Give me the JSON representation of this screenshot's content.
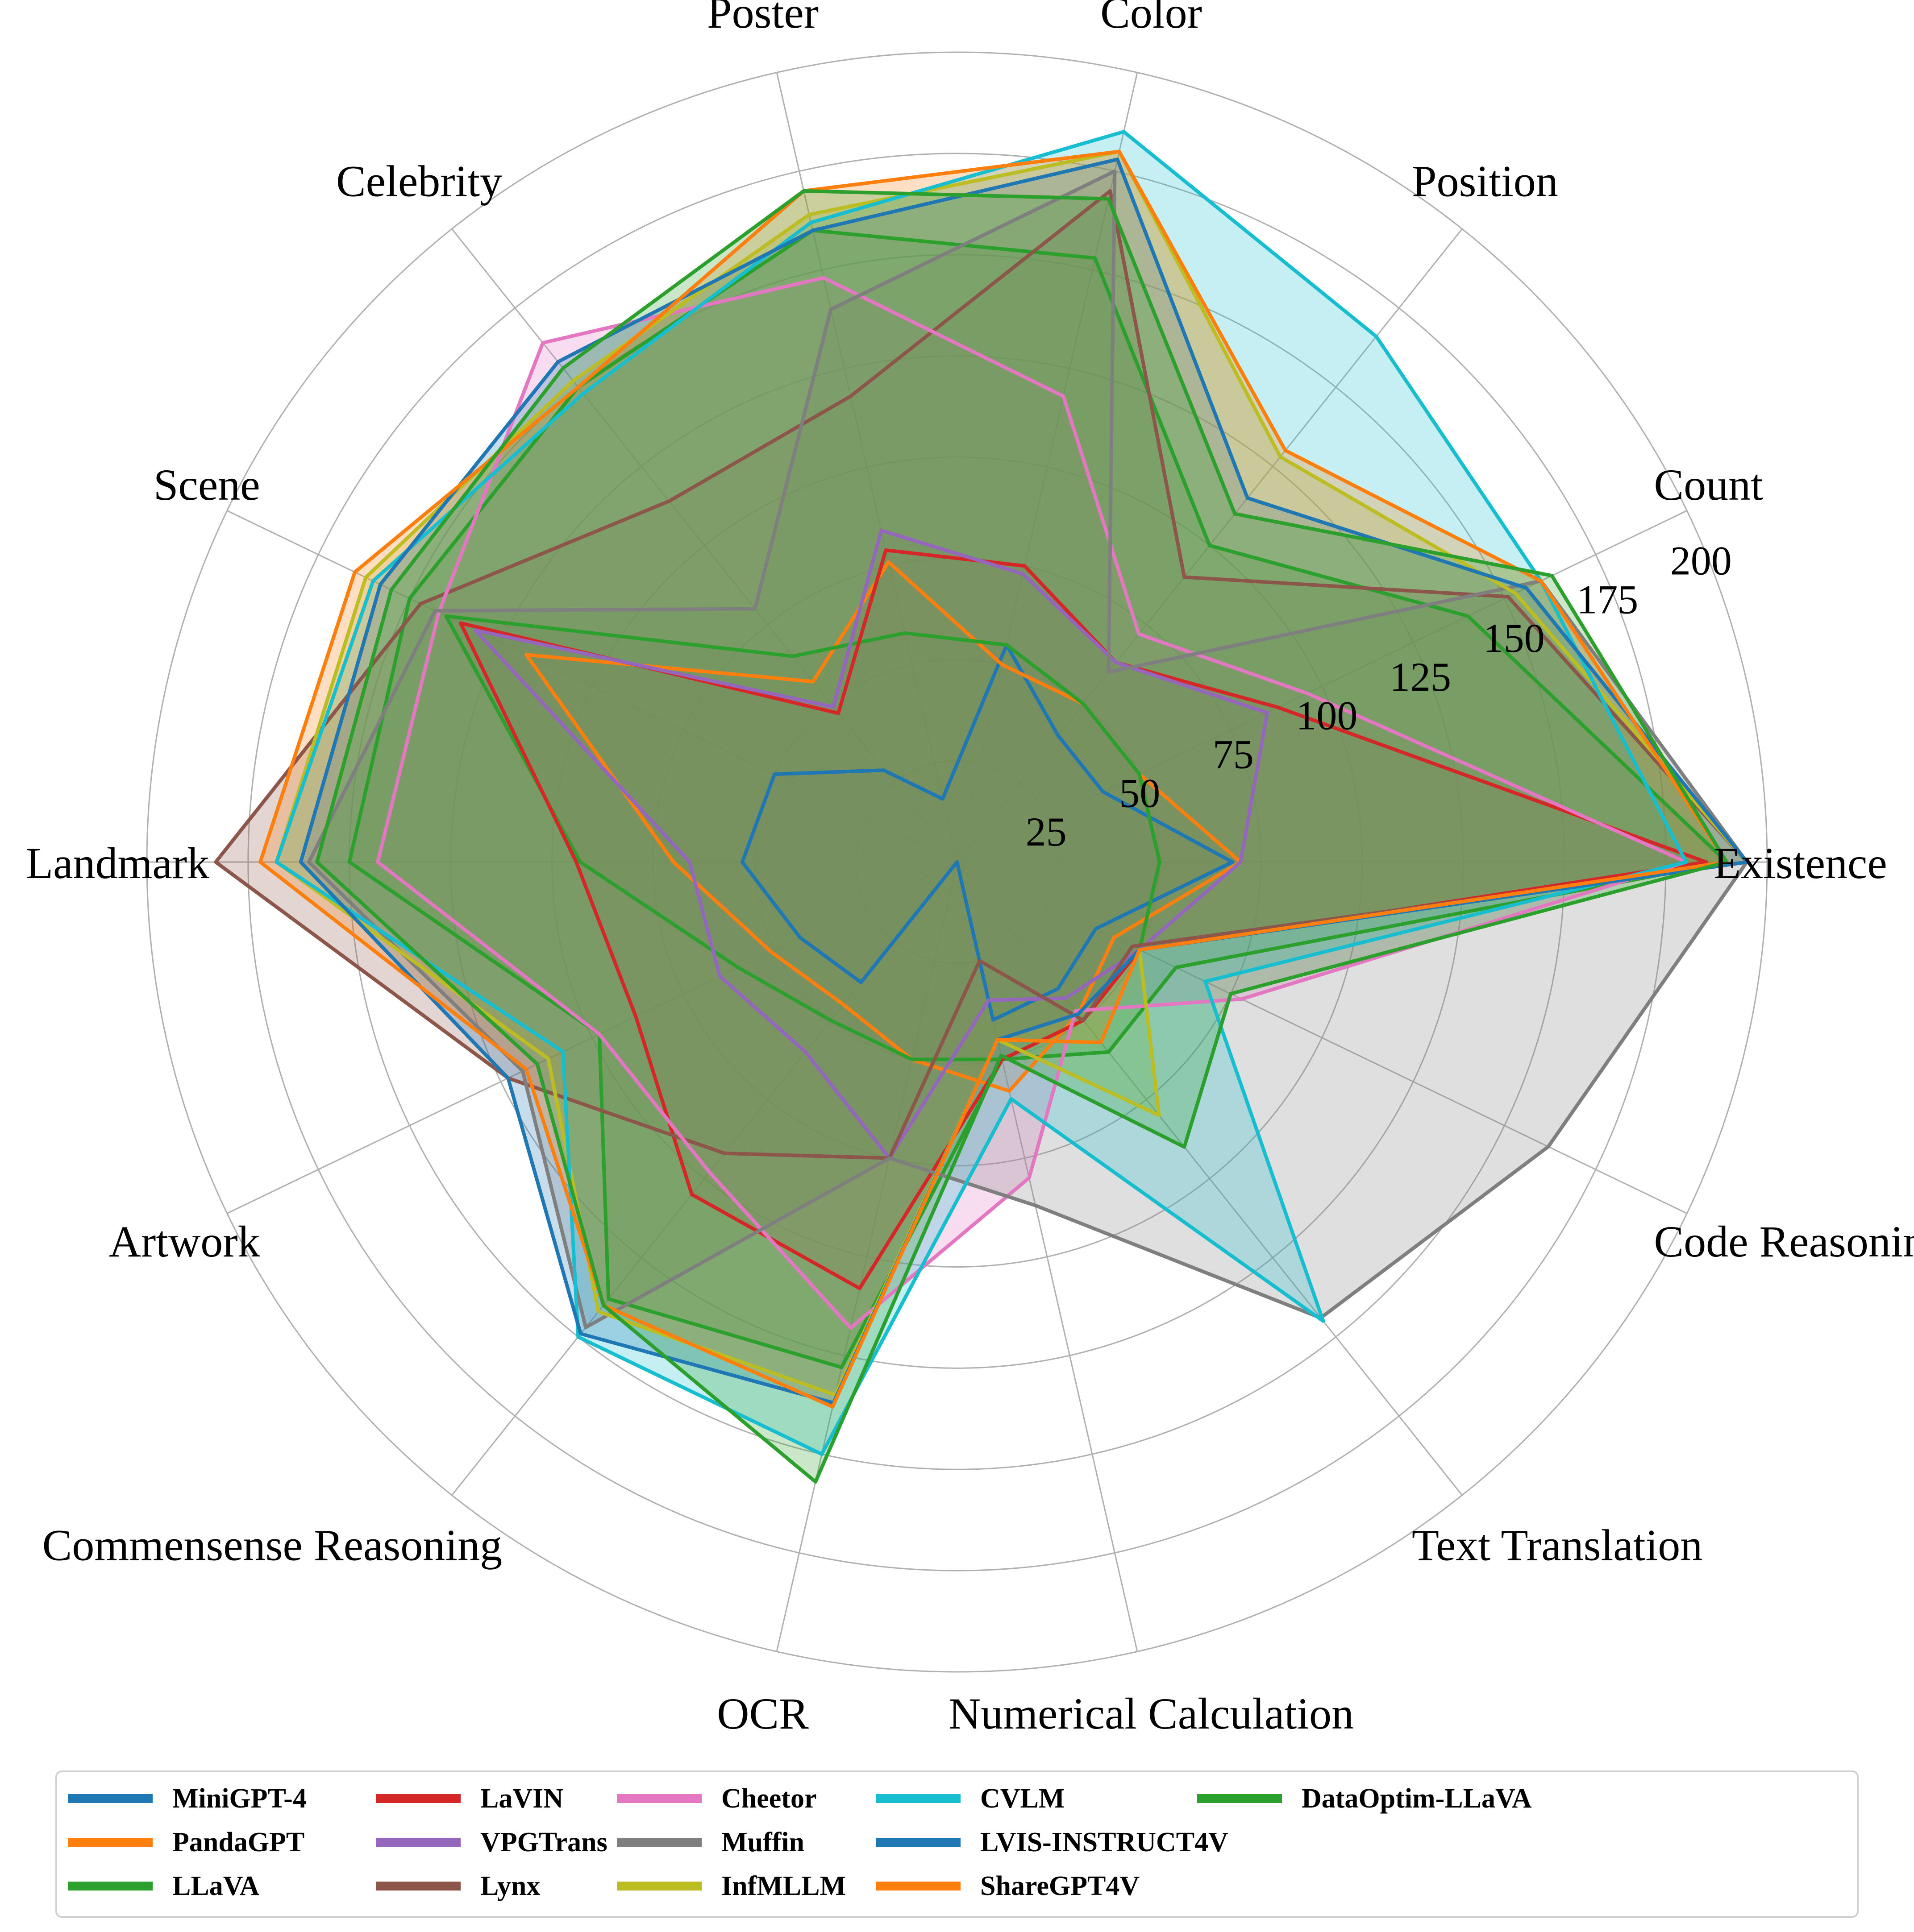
{
  "chart_data": {
    "type": "radar",
    "categories": [
      "Existence",
      "Count",
      "Position",
      "Color",
      "Poster",
      "Celebrity",
      "Scene",
      "Landmark",
      "Artwork",
      "Commensense Reasoning",
      "OCR",
      "Numerical Calculation",
      "Text Translation",
      "Code Reasoning"
    ],
    "rlim": [
      0,
      200
    ],
    "rticks": [
      25,
      50,
      75,
      100,
      125,
      150,
      175,
      200
    ],
    "grid": true,
    "legend_position": "bottom",
    "series": [
      {
        "name": "MiniGPT-4",
        "color": "#1f77b4",
        "values": [
          68,
          40,
          40,
          55,
          16,
          29,
          50,
          53,
          43,
          38,
          0,
          40,
          40,
          38
        ]
      },
      {
        "name": "PandaGPT",
        "color": "#ff7f0e",
        "values": [
          70,
          50,
          50,
          50,
          76,
          57,
          118,
          70,
          51,
          45,
          50,
          58,
          48,
          43
        ]
      },
      {
        "name": "LLaVA",
        "color": "#2ca02c",
        "values": [
          50,
          50,
          50,
          55,
          58,
          65,
          140,
          93,
          60,
          50,
          50,
          50,
          50,
          50
        ]
      },
      {
        "name": "LaVIN",
        "color": "#d62728",
        "values": [
          185,
          88,
          63,
          75,
          79,
          47,
          136,
          94,
          88,
          105,
          108,
          50,
          50,
          50
        ]
      },
      {
        "name": "VPGTrans",
        "color": "#9467bd",
        "values": [
          70,
          85,
          63,
          73,
          84,
          49,
          132,
          66,
          65,
          60,
          75,
          35,
          43,
          50
        ]
      },
      {
        "name": "Lynx",
        "color": "#8c564b",
        "values": [
          195,
          151,
          90,
          170,
          118,
          114,
          147,
          183,
          123,
          92,
          75,
          25,
          50,
          48
        ]
      },
      {
        "name": "Cheetor",
        "color": "#e377c2",
        "values": [
          180,
          96,
          72,
          118,
          148,
          164,
          142,
          143,
          98,
          98,
          118,
          80,
          47,
          78
        ]
      },
      {
        "name": "Muffin",
        "color": "#7f7f7f",
        "values": [
          195,
          160,
          60,
          175,
          140,
          80,
          143,
          160,
          119,
          147,
          75,
          87,
          144,
          162
        ]
      },
      {
        "name": "InfMLLM",
        "color": "#bcbd22",
        "values": [
          195,
          153,
          128,
          180,
          164,
          152,
          162,
          168,
          112,
          142,
          135,
          45,
          80,
          50
        ]
      },
      {
        "name": "CVLM",
        "color": "#17becf",
        "values": [
          180,
          160,
          166,
          185,
          162,
          148,
          160,
          168,
          108,
          150,
          150,
          60,
          145,
          68
        ]
      },
      {
        "name": "LVIS-INSTRUCT4V",
        "color": "#1f77b4",
        "values": [
          195,
          156,
          115,
          178,
          160,
          158,
          158,
          162,
          123,
          149,
          137,
          45,
          48,
          50
        ]
      },
      {
        "name": "ShareGPT4V",
        "color": "#ff7f0e",
        "values": [
          190,
          160,
          130,
          180,
          170,
          150,
          165,
          172,
          118,
          140,
          138,
          45,
          57,
          50
        ]
      },
      {
        "name": "DataOptim-LLaVA",
        "color": "#2ca02c",
        "values": [
          190,
          163,
          110,
          168,
          170,
          156,
          155,
          158,
          115,
          140,
          157,
          49,
          90,
          75
        ]
      }
    ]
  },
  "extra_polygons": [
    {
      "color": "#2ca02c",
      "values": [
        190,
        140,
        100,
        153,
        160,
        150,
        150,
        150,
        98,
        138,
        128,
        50,
        60,
        60
      ]
    }
  ]
}
